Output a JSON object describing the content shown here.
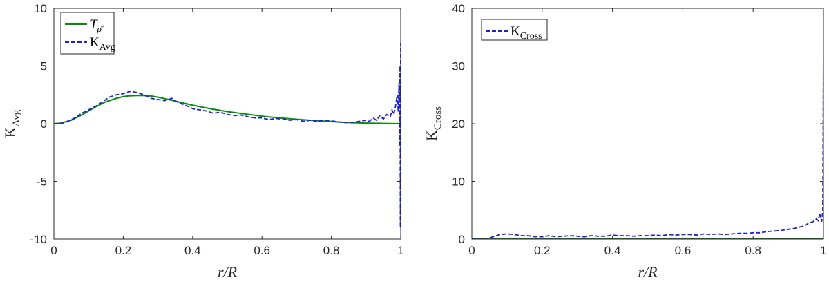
{
  "chart_data": [
    {
      "type": "line",
      "xlabel": "r/R",
      "ylabel": "K_Avg",
      "xlim": [
        0,
        1
      ],
      "ylim": [
        -10,
        10
      ],
      "xticks": [
        0,
        0.2,
        0.4,
        0.6,
        0.8,
        1
      ],
      "yticks": [
        -10,
        -5,
        0,
        5,
        10
      ],
      "xtick_labels": [
        "0",
        "0.2",
        "0.4",
        "0.6",
        "0.8",
        "1"
      ],
      "ytick_labels": [
        "-10",
        "-5",
        "0",
        "5",
        "10"
      ],
      "grid": false,
      "legend_position": "top-left",
      "series": [
        {
          "name": "T_ρ̄",
          "color": "#0a8a0a",
          "style": "solid",
          "x": [
            0,
            0.02,
            0.05,
            0.08,
            0.1,
            0.12,
            0.15,
            0.18,
            0.2,
            0.22,
            0.25,
            0.28,
            0.3,
            0.33,
            0.35,
            0.4,
            0.45,
            0.5,
            0.55,
            0.6,
            0.65,
            0.7,
            0.75,
            0.8,
            0.85,
            0.9,
            0.95,
            1.0
          ],
          "y": [
            0,
            0.05,
            0.3,
            0.75,
            1.1,
            1.45,
            1.9,
            2.2,
            2.35,
            2.42,
            2.45,
            2.4,
            2.3,
            2.1,
            1.95,
            1.6,
            1.3,
            1.05,
            0.85,
            0.65,
            0.5,
            0.38,
            0.28,
            0.18,
            0.1,
            0.05,
            0.02,
            0
          ]
        },
        {
          "name": "K_Avg",
          "color": "#1f1fd6",
          "style": "dashed",
          "x": [
            0,
            0.02,
            0.04,
            0.06,
            0.08,
            0.1,
            0.12,
            0.14,
            0.16,
            0.18,
            0.2,
            0.22,
            0.24,
            0.26,
            0.28,
            0.3,
            0.32,
            0.34,
            0.36,
            0.38,
            0.4,
            0.42,
            0.44,
            0.46,
            0.48,
            0.5,
            0.52,
            0.54,
            0.56,
            0.58,
            0.6,
            0.62,
            0.64,
            0.66,
            0.68,
            0.7,
            0.72,
            0.74,
            0.76,
            0.78,
            0.8,
            0.82,
            0.84,
            0.86,
            0.88,
            0.9,
            0.91,
            0.92,
            0.93,
            0.94,
            0.95,
            0.96,
            0.97,
            0.975,
            0.98,
            0.985,
            0.99,
            0.993,
            0.995,
            0.997,
            0.998,
            0.999,
            1.0
          ],
          "y": [
            0,
            0,
            0.2,
            0.5,
            0.9,
            1.2,
            1.5,
            1.9,
            2.3,
            2.5,
            2.6,
            2.8,
            2.7,
            2.5,
            2.2,
            2.1,
            2.0,
            2.2,
            1.8,
            1.6,
            1.3,
            1.2,
            1.1,
            0.9,
            1.0,
            0.8,
            0.7,
            0.75,
            0.6,
            0.5,
            0.5,
            0.35,
            0.45,
            0.4,
            0.3,
            0.35,
            0.2,
            0.3,
            0.2,
            0.3,
            0.25,
            0.15,
            0.1,
            0.1,
            0.2,
            0.3,
            0.2,
            0.5,
            0.3,
            0.7,
            0.4,
            0.8,
            0.6,
            1.2,
            0.8,
            1.5,
            2.5,
            1.0,
            3.5,
            -2.0,
            5.0,
            -9.0,
            7.0
          ]
        }
      ]
    },
    {
      "type": "line",
      "xlabel": "r/R",
      "ylabel": "K_Cross",
      "xlim": [
        0,
        1
      ],
      "ylim": [
        0,
        40
      ],
      "xticks": [
        0,
        0.2,
        0.4,
        0.6,
        0.8,
        1
      ],
      "yticks": [
        0,
        10,
        20,
        30,
        40
      ],
      "xtick_labels": [
        "0",
        "0.2",
        "0.4",
        "0.6",
        "0.8",
        "1"
      ],
      "ytick_labels": [
        "0",
        "10",
        "20",
        "30",
        "40"
      ],
      "grid": false,
      "legend_position": "top-left",
      "series": [
        {
          "name": "",
          "color": "#0a8a0a",
          "style": "solid",
          "x": [
            0,
            1
          ],
          "y": [
            0,
            0
          ]
        },
        {
          "name": "K_Cross",
          "color": "#1f1fd6",
          "style": "dashed",
          "x": [
            0,
            0.02,
            0.04,
            0.06,
            0.08,
            0.1,
            0.12,
            0.14,
            0.16,
            0.18,
            0.2,
            0.22,
            0.24,
            0.26,
            0.28,
            0.3,
            0.32,
            0.34,
            0.36,
            0.38,
            0.4,
            0.42,
            0.44,
            0.46,
            0.48,
            0.5,
            0.52,
            0.54,
            0.56,
            0.58,
            0.6,
            0.62,
            0.64,
            0.66,
            0.68,
            0.7,
            0.72,
            0.74,
            0.76,
            0.78,
            0.8,
            0.82,
            0.84,
            0.86,
            0.88,
            0.9,
            0.92,
            0.94,
            0.96,
            0.97,
            0.98,
            0.985,
            0.99,
            0.995,
            0.998,
            1.0
          ],
          "y": [
            0,
            0,
            0,
            0.4,
            0.8,
            0.9,
            0.8,
            0.6,
            0.6,
            0.4,
            0.4,
            0.6,
            0.4,
            0.5,
            0.6,
            0.5,
            0.4,
            0.6,
            0.5,
            0.5,
            0.7,
            0.6,
            0.6,
            0.5,
            0.6,
            0.6,
            0.7,
            0.6,
            0.8,
            0.7,
            0.8,
            0.8,
            0.7,
            0.9,
            0.8,
            0.9,
            0.8,
            0.9,
            1.0,
            1.0,
            1.1,
            1.1,
            1.3,
            1.4,
            1.5,
            1.7,
            1.9,
            2.2,
            2.8,
            3.0,
            3.5,
            3.2,
            4.5,
            3.0,
            5.0,
            34.0
          ]
        }
      ]
    }
  ]
}
